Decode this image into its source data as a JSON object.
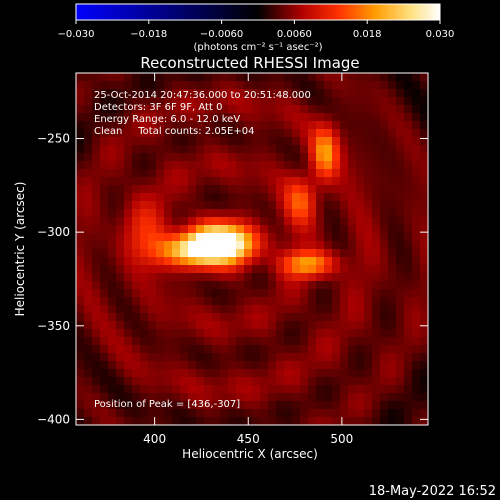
{
  "chart_data": {
    "type": "heatmap",
    "title": "Reconstructed RHESSI Image",
    "xlabel": "Heliocentric X (arcsec)",
    "ylabel": "Heliocentric Y (arcsec)",
    "xlim": [
      358,
      546
    ],
    "ylim": [
      -403,
      -215
    ],
    "xticks": [
      400,
      450,
      500
    ],
    "yticks": [
      -250,
      -300,
      -350,
      -400
    ],
    "colorbar": {
      "range": [
        -0.03,
        0.03
      ],
      "ticks": [
        -0.03,
        -0.018,
        -0.006,
        0.006,
        0.018,
        0.03
      ],
      "tick_labels": [
        "−0.030",
        "−0.018",
        "−0.0060",
        "0.0060",
        "0.018",
        "0.030"
      ],
      "unit_label": "(photons cm⁻² s⁻¹ asec⁻²)",
      "colors": [
        "#0000ff",
        "#000000",
        "#b00000",
        "#ff3000",
        "#ff9a00",
        "#ffe080",
        "#ffffff"
      ]
    },
    "annotations": [
      "25-Oct-2014 20:47:36.000 to 20:51:48.000",
      "Detectors: 3F 6F 9F, Att 0",
      "Energy Range: 6.0 - 12.0 keV",
      "Clean     Total counts: 2.05E+04",
      "Position of Peak = [436,-307]"
    ],
    "peak": [
      436,
      -307
    ],
    "sources": [
      {
        "x": 436,
        "y": -306,
        "sx": 12,
        "sy": 7,
        "amp": 0.03
      },
      {
        "x": 418,
        "y": -310,
        "sx": 12,
        "sy": 6,
        "amp": 0.017
      },
      {
        "x": 482,
        "y": -317,
        "sx": 10,
        "sy": 5,
        "amp": 0.015
      },
      {
        "x": 491,
        "y": -258,
        "sx": 5,
        "sy": 10,
        "amp": 0.014
      },
      {
        "x": 478,
        "y": -283,
        "sx": 6,
        "sy": 9,
        "amp": 0.01
      },
      {
        "x": 395,
        "y": -300,
        "sx": 10,
        "sy": 12,
        "amp": 0.006
      }
    ]
  },
  "footer_date": "18-May-2022 16:52"
}
